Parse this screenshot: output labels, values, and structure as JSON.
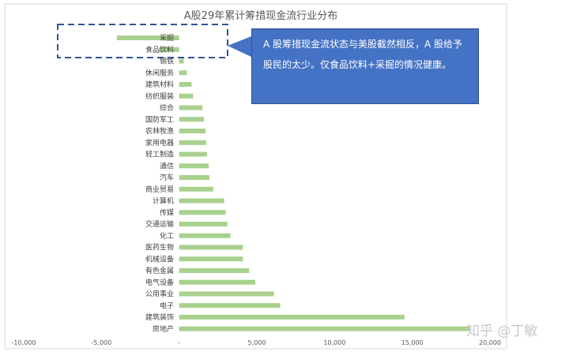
{
  "chart_data": {
    "type": "bar",
    "orientation": "horizontal",
    "title": "A股29年累计筹措现金流行业分布",
    "categories": [
      "采掘",
      "食品饮料",
      "钢铁",
      "休闲服务",
      "建筑材料",
      "纺织服装",
      "综合",
      "国防军工",
      "农林牧渔",
      "家用电器",
      "轻工制造",
      "通信",
      "汽车",
      "商业贸易",
      "计算机",
      "传媒",
      "交通运输",
      "化工",
      "医药生物",
      "机械设备",
      "有色金属",
      "电气设备",
      "公用事业",
      "电子",
      "建筑装饰",
      "房地产"
    ],
    "values": [
      -4000,
      -1300,
      300,
      500,
      800,
      900,
      1500,
      1600,
      1700,
      1750,
      1800,
      1900,
      1950,
      2200,
      2900,
      3000,
      3100,
      3300,
      4100,
      4100,
      4500,
      4900,
      6100,
      6500,
      14500,
      18700
    ],
    "xlim": [
      -10000,
      20000
    ],
    "x_ticks": [
      -10000,
      -5000,
      0,
      5000,
      10000,
      15000,
      20000
    ],
    "x_tick_labels": [
      "-10,000",
      "-5,000",
      "-",
      "5,000",
      "10,000",
      "15,000",
      "20,000"
    ],
    "bar_color": "#a9d18e",
    "grid": false
  },
  "callout": {
    "text": "A 股筹措现金流状态与美股截然相反，A 股给予股民的太少。仅食品饮料+采掘的情况健康。",
    "color": "#4472c4"
  },
  "highlight_box": {
    "color": "#2f5597",
    "style": "dashed"
  },
  "watermark": "知乎 @丁敏"
}
